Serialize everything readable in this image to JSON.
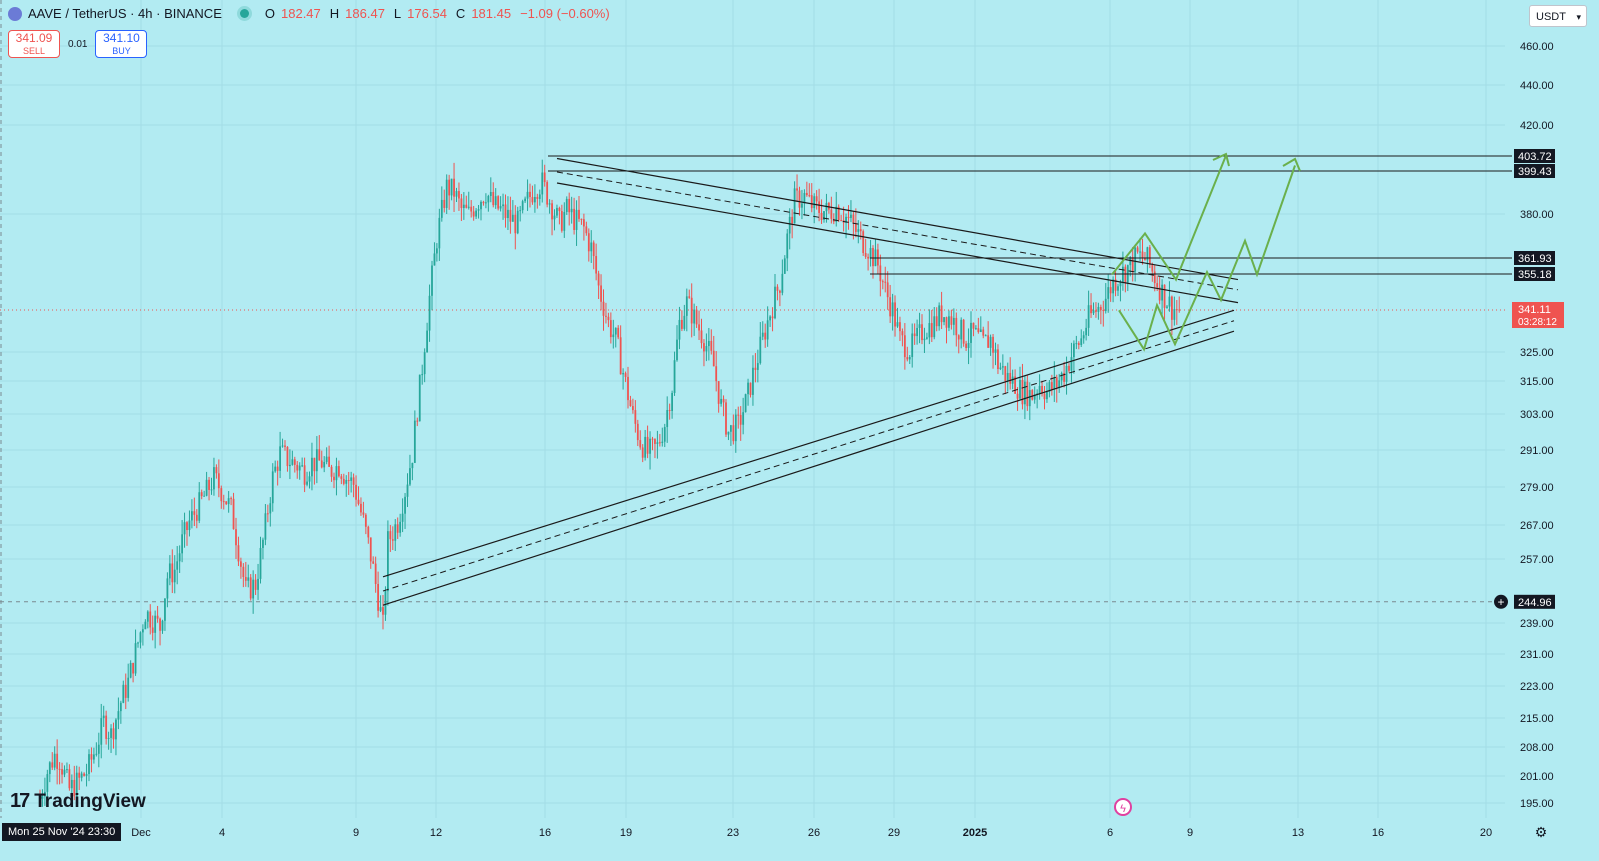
{
  "header": {
    "symbol": "AAVE / TetherUS · 4h · BINANCE",
    "o_label": "O",
    "o_value": "182.47",
    "h_label": "H",
    "h_value": "186.47",
    "l_label": "L",
    "l_value": "176.54",
    "c_label": "C",
    "c_value": "181.45",
    "change": "−1.09 (−0.60%)"
  },
  "trade": {
    "sell_price": "341.09",
    "sell_label": "SELL",
    "spread": "0.01",
    "buy_price": "341.10",
    "buy_label": "BUY"
  },
  "currency": {
    "label": "USDT"
  },
  "brand": {
    "mark": "17",
    "name": "TradingView"
  },
  "crosshair_date": "Mon 25 Nov '24  23:30",
  "colors": {
    "background": "#b2ebf2",
    "up": "#26a69a",
    "down": "#ef5350",
    "projection": "#6ab04c",
    "line": "#1a1a1a"
  },
  "chart_data": {
    "type": "candlestick",
    "y_ticks": [
      "460.00",
      "440.00",
      "420.00",
      "380.00",
      "325.00",
      "315.00",
      "303.00",
      "291.00",
      "279.00",
      "267.00",
      "257.00",
      "239.00",
      "231.00",
      "223.00",
      "215.00",
      "208.00",
      "201.00",
      "195.00"
    ],
    "x_ticks": [
      "Dec",
      "4",
      "9",
      "12",
      "16",
      "19",
      "23",
      "26",
      "29",
      "2025",
      "6",
      "9",
      "13",
      "16",
      "20"
    ],
    "price_labels": [
      {
        "text": "403.72",
        "style": "dark"
      },
      {
        "text": "399.43",
        "style": "dark"
      },
      {
        "text": "361.93",
        "style": "dark"
      },
      {
        "text": "355.18",
        "style": "dark"
      },
      {
        "text": "341.11",
        "sub": "03:28:12",
        "style": "red"
      },
      {
        "text": "244.96",
        "style": "dark"
      }
    ],
    "key_levels": [
      403.72,
      399.43,
      361.93,
      355.18
    ],
    "current_price": 341.11,
    "countdown": "03:28:12",
    "marked_level": 244.96,
    "path_points": [
      [
        0,
        196
      ],
      [
        3,
        202
      ],
      [
        6,
        206
      ],
      [
        8,
        205
      ],
      [
        12,
        198
      ],
      [
        16,
        200
      ],
      [
        19,
        202
      ],
      [
        23,
        208
      ],
      [
        26,
        214
      ],
      [
        29,
        211
      ],
      [
        33,
        219
      ],
      [
        36,
        224
      ],
      [
        40,
        234
      ],
      [
        43,
        242
      ],
      [
        46,
        240
      ],
      [
        49,
        238
      ],
      [
        52,
        252
      ],
      [
        55,
        254
      ],
      [
        58,
        262
      ],
      [
        61,
        268
      ],
      [
        64,
        272
      ],
      [
        67,
        276
      ],
      [
        71,
        282
      ],
      [
        74,
        278
      ],
      [
        78,
        272
      ],
      [
        81,
        260
      ],
      [
        84,
        248
      ],
      [
        88,
        250
      ],
      [
        91,
        262
      ],
      [
        95,
        282
      ],
      [
        98,
        290
      ],
      [
        101,
        288
      ],
      [
        105,
        286
      ],
      [
        108,
        284
      ],
      [
        111,
        287
      ],
      [
        115,
        287
      ],
      [
        118,
        284
      ],
      [
        122,
        286
      ],
      [
        125,
        282
      ],
      [
        128,
        280
      ],
      [
        132,
        268
      ],
      [
        135,
        258
      ],
      [
        138,
        246
      ],
      [
        140,
        238
      ],
      [
        142,
        262
      ],
      [
        146,
        268
      ],
      [
        149,
        278
      ],
      [
        152,
        290
      ],
      [
        156,
        320
      ],
      [
        159,
        346
      ],
      [
        162,
        370
      ],
      [
        166,
        392
      ],
      [
        169,
        390
      ],
      [
        172,
        382
      ],
      [
        175,
        380
      ],
      [
        179,
        386
      ],
      [
        182,
        390
      ],
      [
        185,
        384
      ],
      [
        188,
        382
      ],
      [
        192,
        378
      ],
      [
        195,
        376
      ],
      [
        199,
        386
      ],
      [
        202,
        392
      ],
      [
        205,
        394
      ],
      [
        208,
        386
      ],
      [
        212,
        376
      ],
      [
        215,
        382
      ],
      [
        218,
        378
      ],
      [
        222,
        374
      ],
      [
        225,
        366
      ],
      [
        228,
        350
      ],
      [
        232,
        336
      ],
      [
        235,
        330
      ],
      [
        238,
        318
      ],
      [
        242,
        302
      ],
      [
        245,
        294
      ],
      [
        248,
        290
      ],
      [
        252,
        292
      ],
      [
        255,
        300
      ],
      [
        258,
        313
      ],
      [
        261,
        336
      ],
      [
        264,
        344
      ],
      [
        268,
        336
      ],
      [
        271,
        330
      ],
      [
        275,
        320
      ],
      [
        278,
        306
      ],
      [
        281,
        297
      ],
      [
        285,
        299
      ],
      [
        288,
        307
      ],
      [
        291,
        317
      ],
      [
        295,
        330
      ],
      [
        298,
        340
      ],
      [
        302,
        352
      ],
      [
        305,
        370
      ],
      [
        308,
        386
      ],
      [
        312,
        388
      ],
      [
        315,
        384
      ],
      [
        318,
        382
      ],
      [
        322,
        381
      ],
      [
        325,
        383
      ],
      [
        328,
        380
      ],
      [
        331,
        376
      ],
      [
        335,
        370
      ],
      [
        338,
        366
      ],
      [
        342,
        359
      ],
      [
        345,
        349
      ],
      [
        348,
        341
      ],
      [
        351,
        330
      ],
      [
        355,
        326
      ],
      [
        358,
        330
      ],
      [
        361,
        334
      ],
      [
        365,
        336
      ],
      [
        368,
        340
      ],
      [
        372,
        338
      ],
      [
        375,
        334
      ],
      [
        378,
        330
      ],
      [
        381,
        332
      ],
      [
        385,
        328
      ],
      [
        388,
        330
      ],
      [
        391,
        321
      ],
      [
        395,
        316
      ],
      [
        398,
        314
      ],
      [
        401,
        311
      ],
      [
        405,
        310
      ],
      [
        408,
        314
      ],
      [
        411,
        311
      ],
      [
        415,
        314
      ],
      [
        418,
        318
      ],
      [
        421,
        324
      ],
      [
        425,
        330
      ],
      [
        428,
        338
      ],
      [
        432,
        342
      ],
      [
        435,
        346
      ],
      [
        438,
        352
      ],
      [
        442,
        356
      ],
      [
        445,
        359
      ],
      [
        448,
        363
      ],
      [
        452,
        361
      ],
      [
        455,
        354
      ],
      [
        458,
        348
      ],
      [
        462,
        342
      ],
      [
        465,
        341
      ]
    ],
    "series_note": "AAVE/USDT 4h candles"
  },
  "projection": {
    "label": "projected path"
  }
}
